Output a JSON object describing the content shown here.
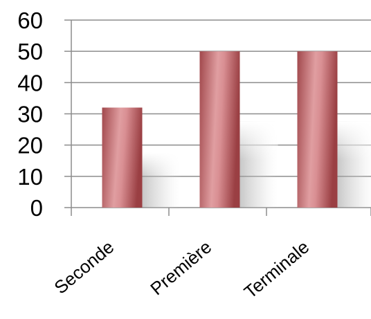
{
  "chart_data": {
    "type": "bar",
    "categories": [
      "Seconde",
      "Première",
      "Terminale"
    ],
    "values": [
      32,
      50,
      50
    ],
    "title": "",
    "xlabel": "",
    "ylabel": "",
    "ylim": [
      0,
      60
    ],
    "yticks": [
      "0",
      "10",
      "20",
      "30",
      "40",
      "50",
      "60"
    ],
    "grid": true,
    "legend": "none",
    "colors": {
      "bar_dark": "#9e4a4d",
      "bar_light": "#de9b9e",
      "grid": "#8c8c8c",
      "axis": "#8c8c8c",
      "shadow": "#bdbdbd"
    }
  }
}
